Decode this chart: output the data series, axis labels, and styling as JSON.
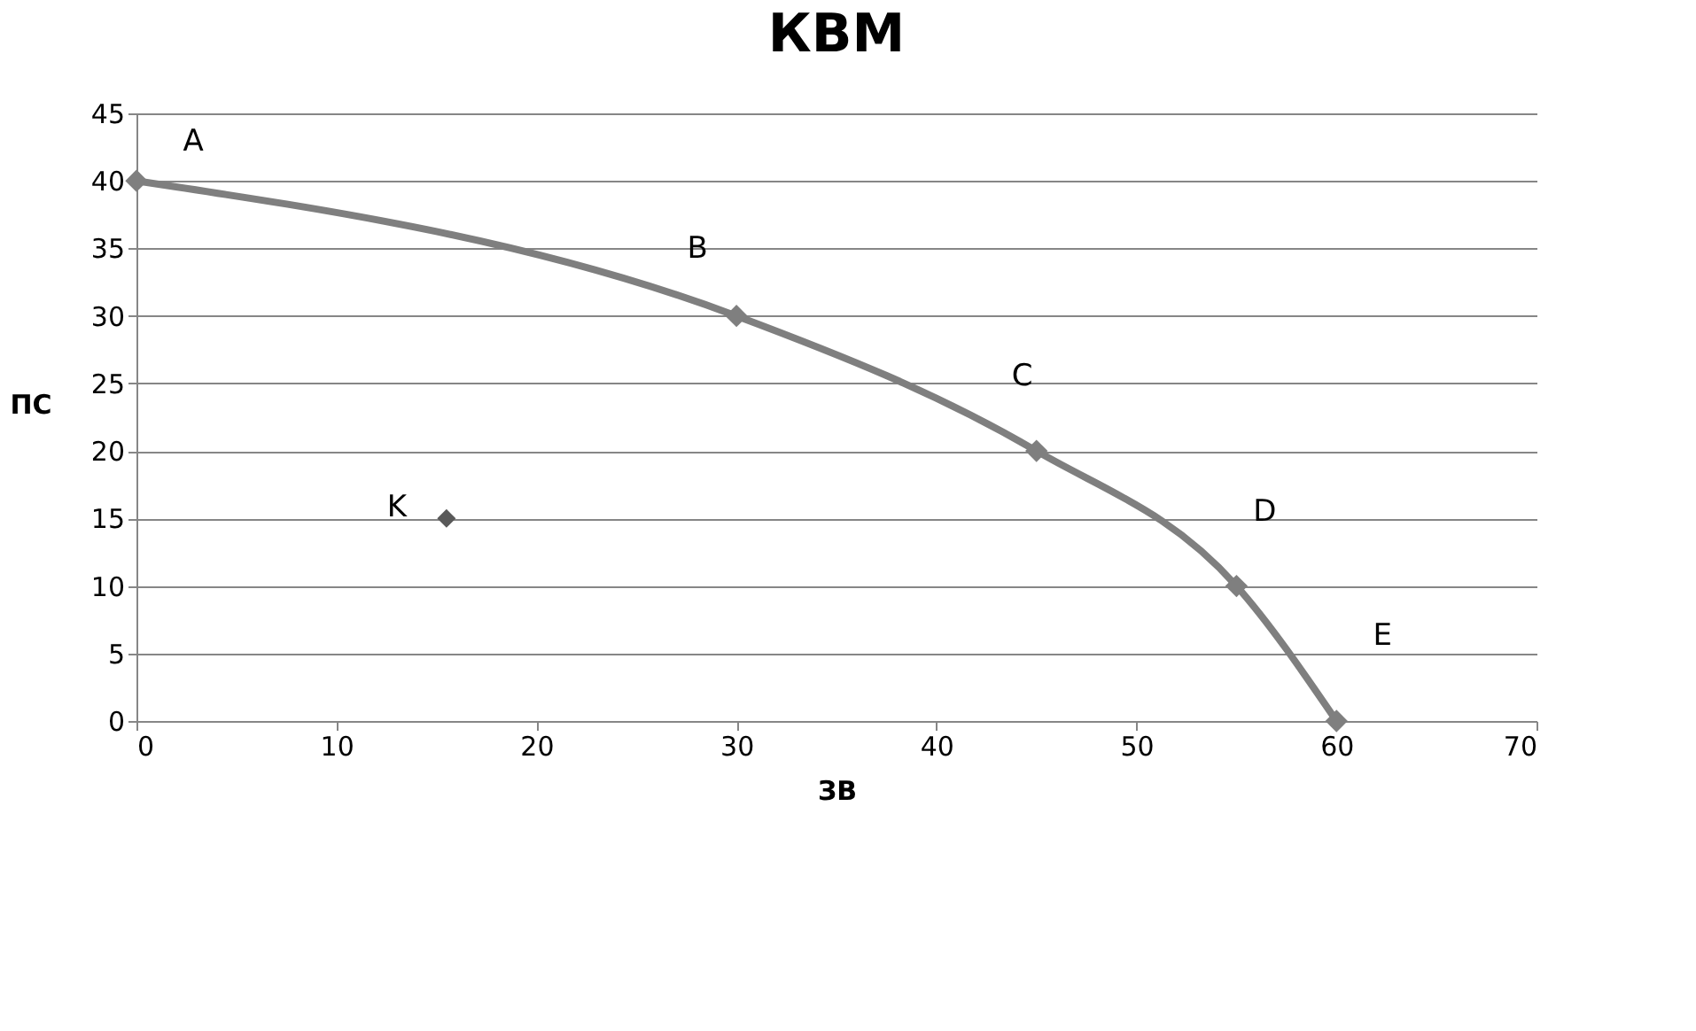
{
  "chart_data": {
    "type": "line",
    "title": "КВМ",
    "xlabel": "ЗВ",
    "ylabel": "ПС",
    "x": [
      0,
      30,
      45,
      55,
      60
    ],
    "series": [
      {
        "color": "#7f7f7f",
        "values": [
          40,
          30,
          20,
          10,
          0
        ]
      },
      {
        "type": "scatter",
        "color": "#595959",
        "x": [
          15.5
        ],
        "values": [
          15
        ]
      }
    ],
    "annotations": [
      {
        "text": "A",
        "x": 0,
        "y": 40
      },
      {
        "text": "B",
        "x": 30,
        "y": 30
      },
      {
        "text": "C",
        "x": 45,
        "y": 20
      },
      {
        "text": "D",
        "x": 55,
        "y": 10
      },
      {
        "text": "E",
        "x": 60,
        "y": 0
      },
      {
        "text": "K",
        "x": 15.5,
        "y": 15
      }
    ],
    "xlim": [
      0,
      70
    ],
    "xticks": [
      0,
      10,
      20,
      30,
      40,
      50,
      60,
      70
    ],
    "ylim": [
      0,
      45
    ],
    "yticks": [
      0,
      5,
      10,
      15,
      20,
      25,
      30,
      35,
      40,
      45
    ],
    "grid": "y",
    "marker": "diamond",
    "line_style": "solid"
  }
}
